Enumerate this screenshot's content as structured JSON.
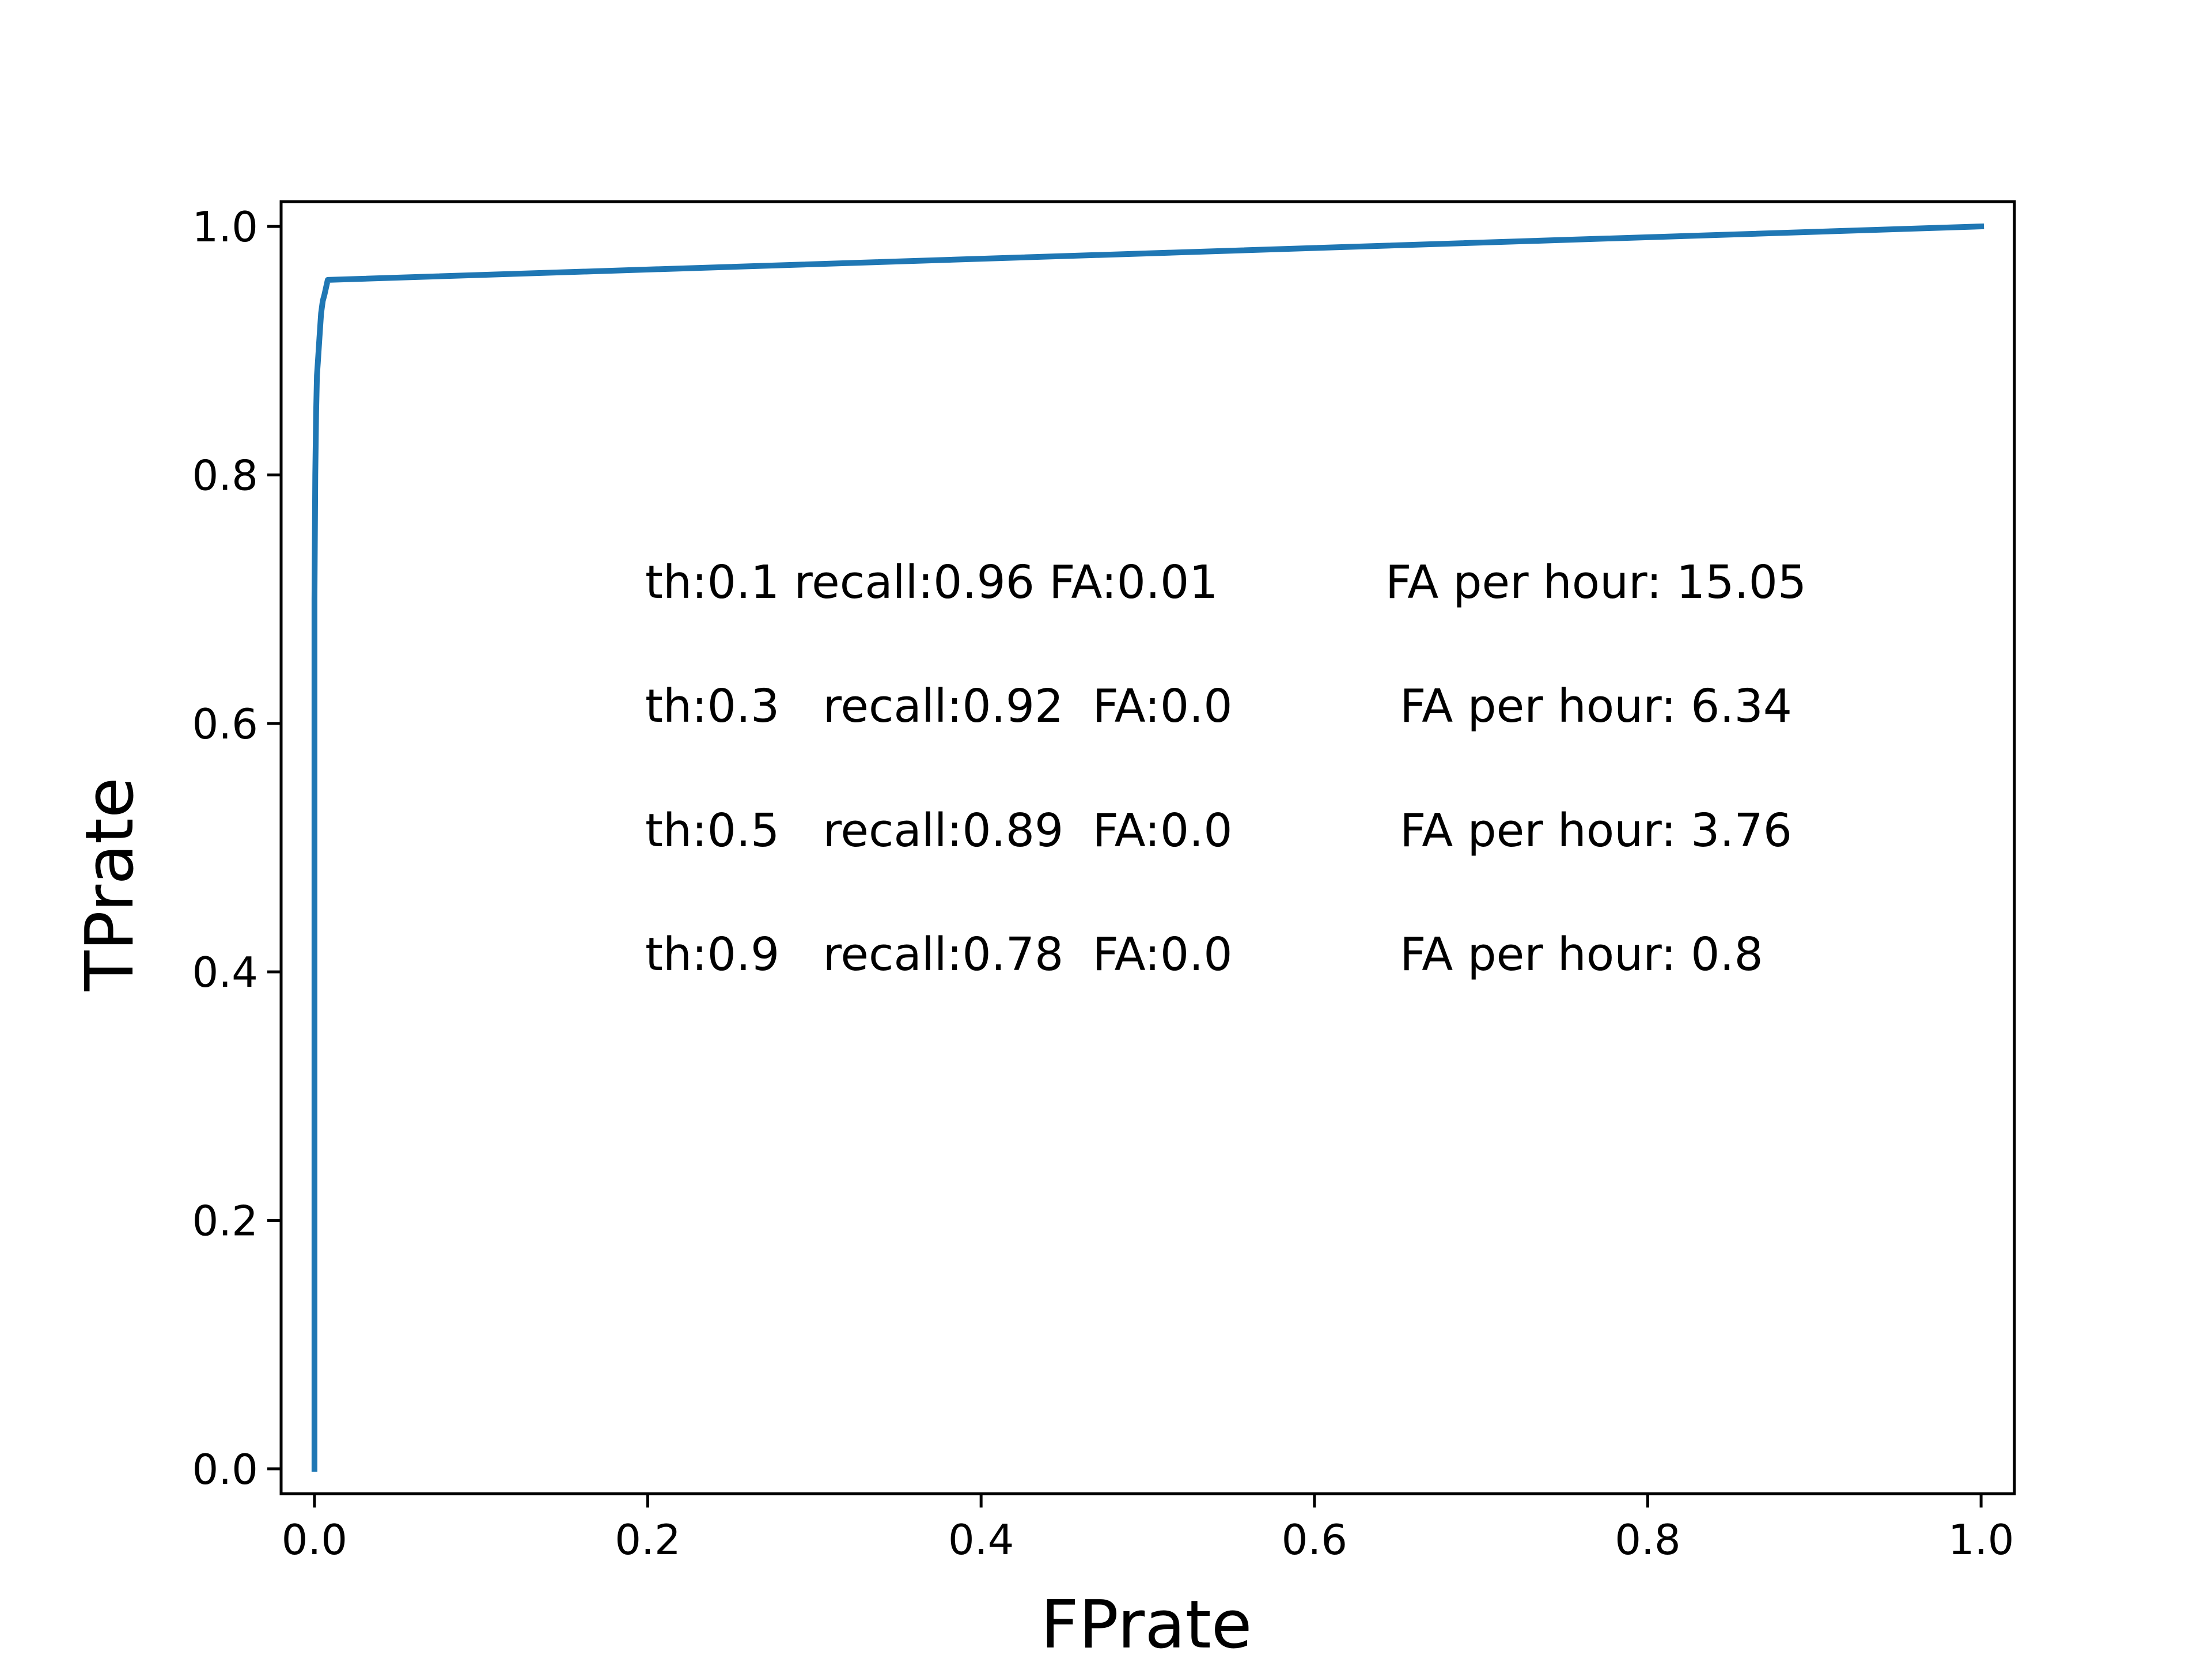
{
  "chart_data": {
    "type": "line",
    "title": "",
    "xlabel": "FPrate",
    "ylabel": "TPrate",
    "xlim": [
      -0.02,
      1.02
    ],
    "ylim": [
      -0.02,
      1.02
    ],
    "xticks": [
      0.0,
      0.2,
      0.4,
      0.6,
      0.8,
      1.0
    ],
    "xtick_labels": [
      "0.0",
      "0.2",
      "0.4",
      "0.6",
      "0.8",
      "1.0"
    ],
    "yticks": [
      0.0,
      0.2,
      0.4,
      0.6,
      0.8,
      1.0
    ],
    "ytick_labels": [
      "0.0",
      "0.2",
      "0.4",
      "0.6",
      "0.8",
      "1.0"
    ],
    "grid": false,
    "legend": "none",
    "series": [
      {
        "color": "#1f77b4",
        "x": [
          0.0,
          0.0,
          0.0005,
          0.001,
          0.0015,
          0.002,
          0.003,
          0.004,
          0.005,
          0.006,
          0.008,
          1.0
        ],
        "y": [
          0.0,
          0.7,
          0.8,
          0.85,
          0.88,
          0.89,
          0.91,
          0.93,
          0.94,
          0.945,
          0.957,
          1.0
        ]
      }
    ],
    "annotations": [
      {
        "left": "th:0.1 recall:0.96 FA:0.01",
        "right": "FA per hour: 15.05"
      },
      {
        "left": "th:0.3   recall:0.92  FA:0.0",
        "right": " FA per hour: 6.34"
      },
      {
        "left": "th:0.5   recall:0.89  FA:0.0",
        "right": " FA per hour: 3.76"
      },
      {
        "left": "th:0.9   recall:0.78  FA:0.0",
        "right": " FA per hour: 0.8"
      }
    ]
  }
}
